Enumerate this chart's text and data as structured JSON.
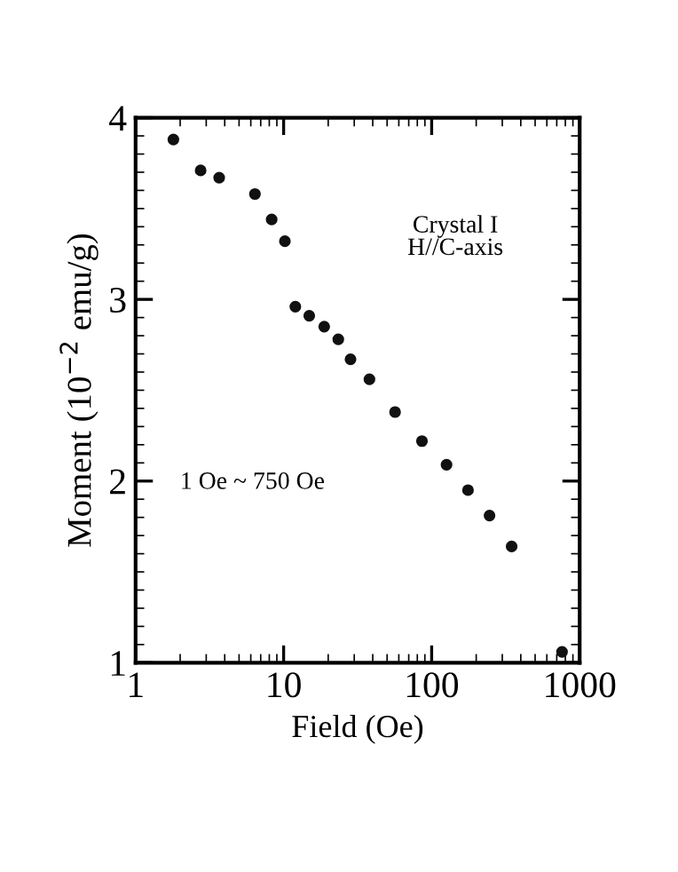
{
  "chart_data": {
    "type": "scatter",
    "xlabel": "Field (Oe)",
    "ylabel": "Moment (10$^{−2}$ emu/g)",
    "log": "x",
    "x": [
      1.8,
      2.75,
      3.67,
      6.4,
      8.3,
      10.2,
      12.0,
      14.9,
      18.8,
      23.4,
      28.3,
      38,
      56.6,
      86,
      126,
      176,
      246,
      347,
      760
    ],
    "series": [
      {
        "color": "#111111",
        "values": [
          3.88,
          3.71,
          3.67,
          3.58,
          3.44,
          3.32,
          2.96,
          2.91,
          2.85,
          2.78,
          2.67,
          2.56,
          2.38,
          2.22,
          2.09,
          1.95,
          1.81,
          1.64,
          1.06
        ]
      }
    ],
    "marker": "circle",
    "xlim": [
      1,
      1000
    ],
    "xticks": [
      1,
      10,
      100,
      1000
    ],
    "ylim": [
      1,
      4
    ],
    "yticks": [
      1,
      2,
      3,
      4
    ],
    "grid": false,
    "legend": false,
    "annotations": [
      "Crystal I\nH//C-axis",
      "1 Oe ~ 750 Oe"
    ]
  }
}
